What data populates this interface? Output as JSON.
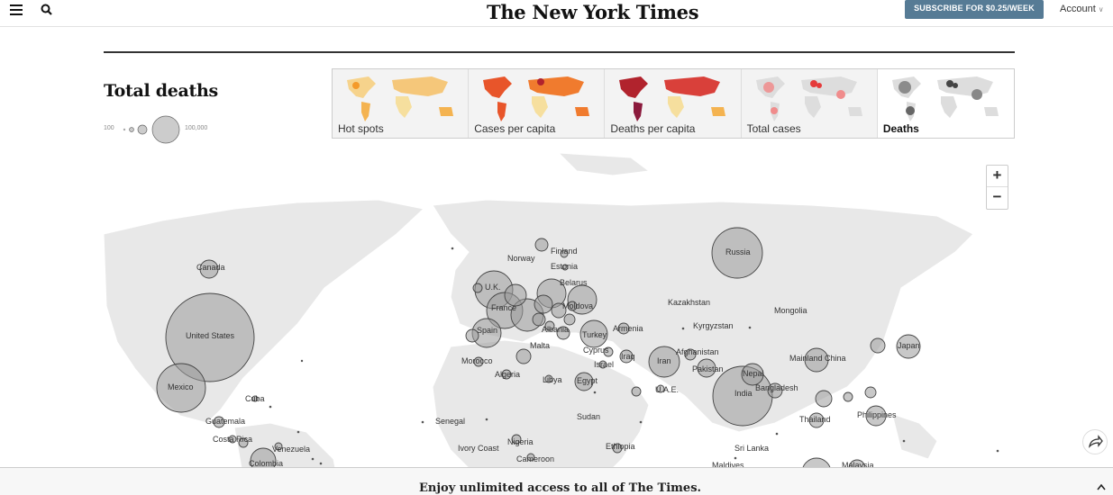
{
  "header": {
    "logo": "The New York Times",
    "subscribe_label": "SUBSCRIBE FOR $0.25/WEEK",
    "account_label": "Account"
  },
  "panel": {
    "title": "Total deaths",
    "legend_min": "100",
    "legend_max": "100,000"
  },
  "tabs": [
    {
      "label": "Hot spots"
    },
    {
      "label": "Cases per capita"
    },
    {
      "label": "Deaths per capita"
    },
    {
      "label": "Total cases"
    },
    {
      "label": "Deaths"
    }
  ],
  "map_labels": [
    "Canada",
    "United States",
    "Mexico",
    "Cuba",
    "Guatemala",
    "Costa Rica",
    "Venezuela",
    "Colombia",
    "Norway",
    "Finland",
    "Estonia",
    "Belarus",
    "U.K.",
    "France",
    "Moldova",
    "Spain",
    "Turkey",
    "Albania",
    "Armenia",
    "Cyprus",
    "Iraq",
    "Israel",
    "Malta",
    "Morocco",
    "Algeria",
    "Libya",
    "Egypt",
    "Iran",
    "Afghanistan",
    "Pakistan",
    "Kazakhstan",
    "Kyrgyzstan",
    "Mongolia",
    "Russia",
    "Nepal",
    "India",
    "Bangladesh",
    "U.A.E.",
    "Mainland China",
    "Japan",
    "Thailand",
    "Philippines",
    "Sri Lanka",
    "Maldives",
    "Malaysia",
    "Senegal",
    "Ivory Coast",
    "Nigeria",
    "Cameroon",
    "Sudan",
    "Ethiopia"
  ],
  "zoom": {
    "in": "+",
    "out": "−"
  },
  "banner": {
    "text": "Enjoy unlimited access to all of The Times."
  },
  "colors": {
    "subscribe_bg": "#567b95",
    "bubble_fill": "#9b9b9b",
    "land": "#e8e8e8"
  }
}
